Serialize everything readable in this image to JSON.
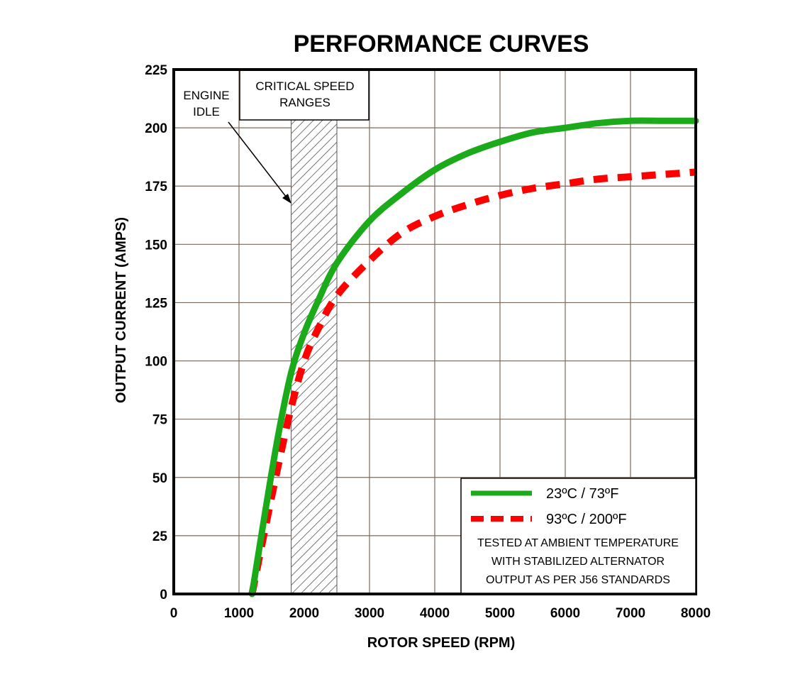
{
  "chart_data": {
    "type": "line",
    "title": "PERFORMANCE CURVES",
    "xlabel": "ROTOR SPEED (RPM)",
    "ylabel": "OUTPUT CURRENT (AMPS)",
    "xlim": [
      0,
      8000
    ],
    "ylim": [
      0,
      225
    ],
    "x_ticks": [
      "0",
      "1000",
      "2000",
      "3000",
      "4000",
      "5000",
      "6000",
      "7000",
      "8000"
    ],
    "y_ticks": [
      "0",
      "25",
      "50",
      "75",
      "100",
      "125",
      "150",
      "175",
      "200",
      "225"
    ],
    "grid": true,
    "series": [
      {
        "name": "23ºC / 73ºF",
        "color": "#1aaa1a",
        "style": "solid",
        "x": [
          1200,
          1400,
          1600,
          1800,
          2000,
          2200,
          2500,
          3000,
          3500,
          4000,
          4500,
          5000,
          5500,
          6000,
          6500,
          7000,
          7500,
          8000
        ],
        "y": [
          0,
          35,
          68,
          95,
          112,
          125,
          142,
          160,
          172,
          182,
          189,
          194,
          198,
          200,
          202,
          203,
          203,
          203
        ]
      },
      {
        "name": "93ºC / 200ºF",
        "color": "#ff0000",
        "style": "dashed",
        "x": [
          1200,
          1400,
          1600,
          1800,
          2000,
          2200,
          2500,
          3000,
          3500,
          4000,
          4500,
          5000,
          5500,
          6000,
          6500,
          7000,
          7500,
          8000
        ],
        "y": [
          0,
          28,
          55,
          80,
          100,
          113,
          128,
          143,
          155,
          162,
          167,
          171,
          174,
          176,
          178,
          179,
          180,
          181
        ]
      }
    ],
    "critical_speed_range": [
      1800,
      2500
    ],
    "annotations": {
      "engine_idle": [
        "ENGINE",
        "IDLE"
      ],
      "critical_speed": [
        "CRITICAL SPEED",
        "RANGES"
      ]
    },
    "legend_note": [
      "TESTED AT AMBIENT TEMPERATURE",
      "WITH  STABILIZED ALTERNATOR",
      "OUTPUT AS PER J56 STANDARDS"
    ],
    "legend_position": "bottom-right"
  }
}
